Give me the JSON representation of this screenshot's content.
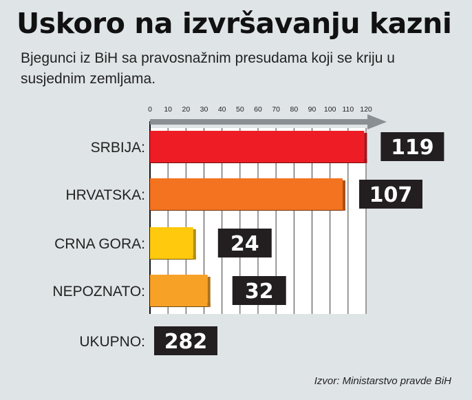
{
  "header": {
    "title": "Uskoro na izvršavanju kazni",
    "subtitle": "Bjegunci iz BiH sa pravosnažnim presudama koji se kriju u susjednim zemljama."
  },
  "footer": {
    "source": "Izvor: Ministarstvo pravde BiH"
  },
  "colors": {
    "SRBIJA": "#ee1c25",
    "HRVATSKA": "#f47320",
    "CRNA GORA": "#ffc90e",
    "NEPOZNATO": "#f7a127",
    "value_box": "#231f20",
    "axis_arrow": "#8a8f93"
  },
  "chart_data": {
    "type": "bar",
    "orientation": "horizontal",
    "categories": [
      "SRBIJA:",
      "HRVATSKA:",
      "CRNA GORA:",
      "NEPOZNATO:"
    ],
    "values": [
      119,
      107,
      24,
      32
    ],
    "value_labels": [
      "119",
      "107",
      "24",
      "32"
    ],
    "xlim": [
      0,
      120
    ],
    "xticks": [
      0,
      10,
      20,
      30,
      40,
      50,
      60,
      70,
      80,
      90,
      100,
      110,
      120
    ],
    "grid": true,
    "total": {
      "label": "UKUPNO:",
      "value": 282
    }
  }
}
